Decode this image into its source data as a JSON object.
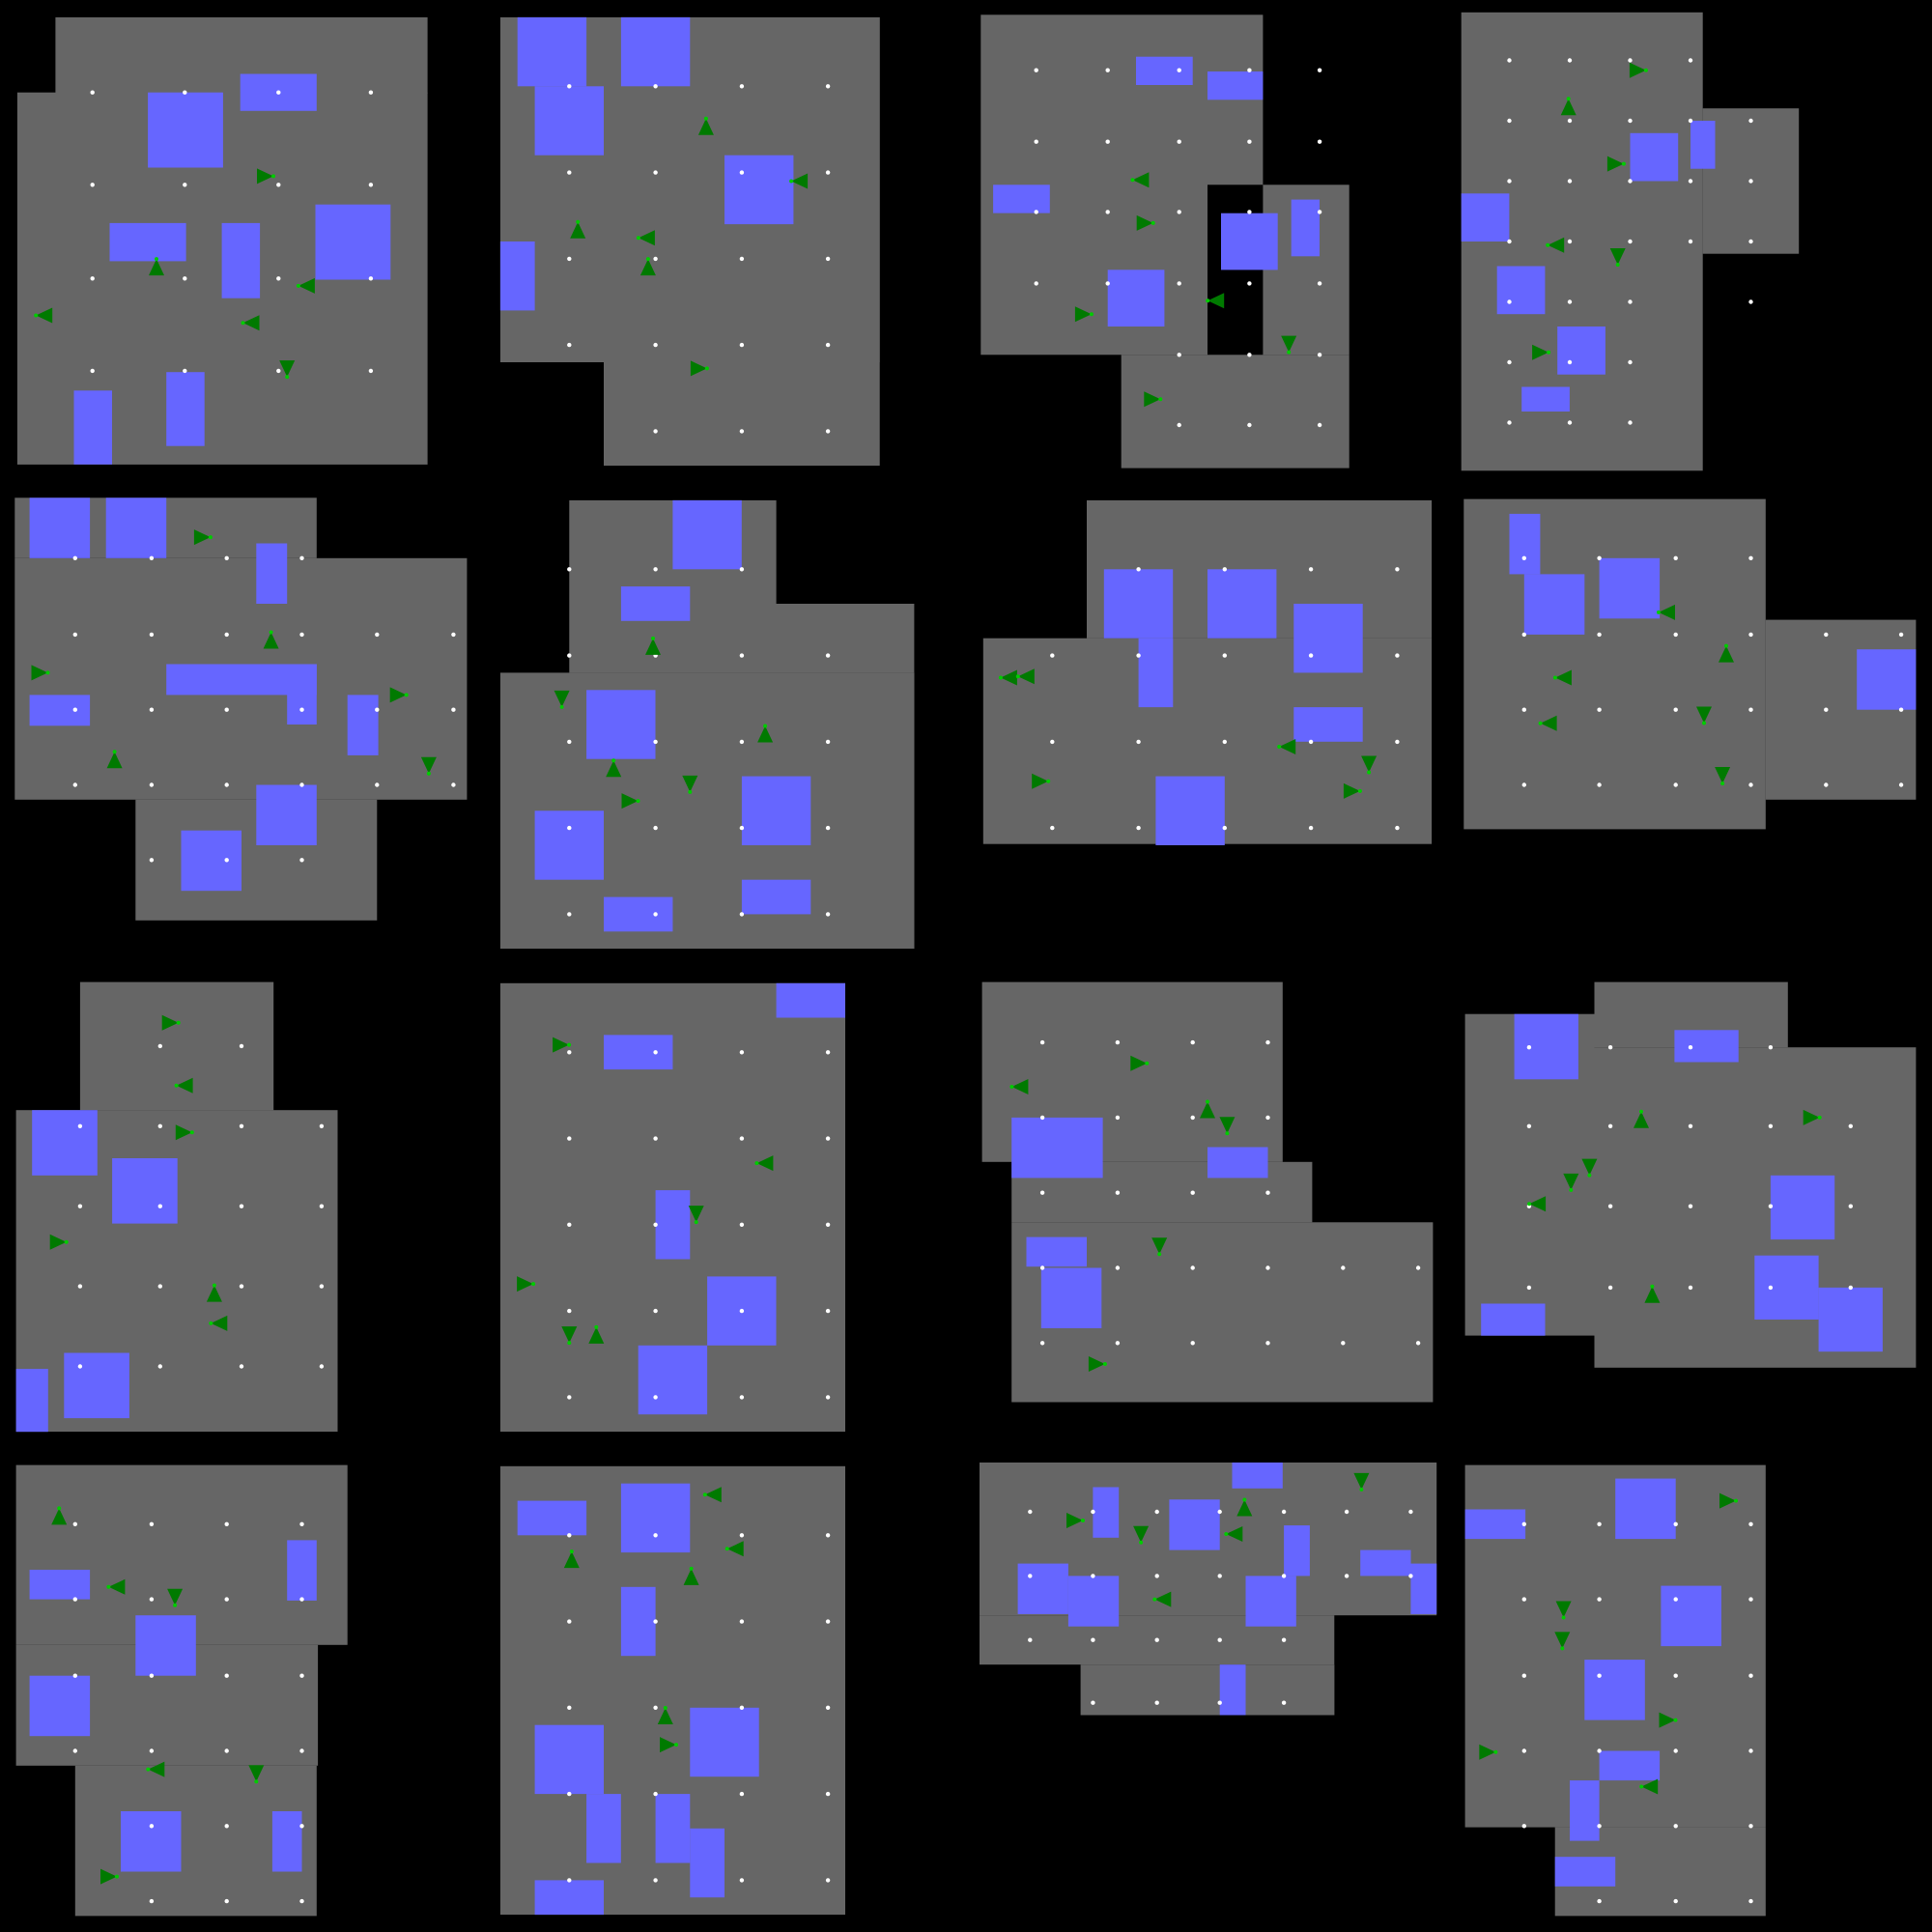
{
  "title": "",
  "colors": {
    "background": "#000000",
    "floor": "#666666",
    "obstacle": "#6666ff",
    "agent": "#007a00",
    "agent_marker": "#00cc00",
    "waypoint": "#ffffff"
  },
  "icons": {
    "agent": "triangle-agent-icon",
    "waypoint": "dot-icon"
  },
  "map_count": 16
}
